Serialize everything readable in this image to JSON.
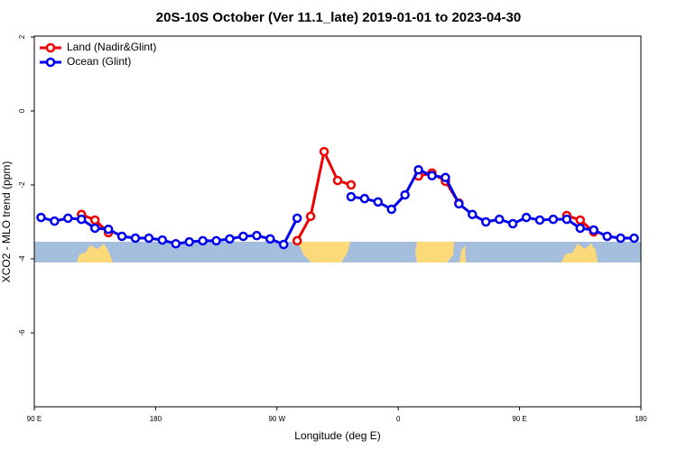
{
  "chart_data": {
    "type": "line",
    "title": "20S-10S October (Ver 11.1_late)   2019-01-01 to 2023-04-30",
    "x_label": "Longitude (deg E)",
    "y_label": "XCO2 - MLO trend (ppm)",
    "x": [
      95,
      105,
      115,
      125,
      135,
      145,
      155,
      165,
      175,
      185,
      195,
      205,
      215,
      225,
      235,
      245,
      255,
      265,
      275,
      285,
      295,
      305,
      315,
      325,
      335,
      345,
      355,
      365,
      375,
      385,
      395,
      405,
      415,
      425,
      435,
      445,
      455,
      465,
      475,
      485,
      495,
      505,
      515,
      525,
      535
    ],
    "series": [
      {
        "name": "Land (Nadir&Glint)",
        "color": "#ee0000",
        "values": [
          null,
          null,
          null,
          -2.8,
          -2.95,
          -3.29,
          null,
          null,
          null,
          null,
          null,
          null,
          null,
          null,
          null,
          null,
          null,
          null,
          null,
          -3.51,
          -2.85,
          -1.1,
          -1.88,
          -2.0,
          null,
          null,
          null,
          null,
          -1.76,
          -1.68,
          -1.9,
          -2.49,
          null,
          null,
          null,
          null,
          null,
          null,
          null,
          -2.83,
          -2.95,
          -3.27,
          null,
          null,
          null
        ]
      },
      {
        "name": "Ocean (Glint)",
        "color": "#0000ee",
        "values": [
          -2.88,
          -2.98,
          -2.9,
          -2.93,
          -3.17,
          -3.2,
          -3.39,
          -3.44,
          -3.44,
          -3.49,
          -3.59,
          -3.54,
          -3.51,
          -3.51,
          -3.46,
          -3.39,
          -3.37,
          -3.46,
          -3.61,
          -2.9,
          null,
          null,
          null,
          -2.32,
          -2.37,
          -2.46,
          -2.66,
          -2.27,
          -1.59,
          -1.75,
          -1.8,
          -2.51,
          -2.8,
          -3.0,
          -2.93,
          -3.05,
          -2.88,
          -2.95,
          -2.93,
          -2.93,
          -3.17,
          -3.22,
          -3.39,
          -3.44,
          -3.44
        ]
      }
    ],
    "xlim": [
      90,
      540
    ],
    "xticks": [
      {
        "value": 90,
        "label": "90 E"
      },
      180,
      {
        "value": 270,
        "label": "90 W"
      },
      {
        "value": 360,
        "label": "0"
      },
      {
        "value": 450,
        "label": "90 E"
      },
      {
        "value": 540,
        "label": "180"
      }
    ],
    "ylim": [
      -8,
      2
    ],
    "yticks": [
      2,
      0,
      -2,
      -4,
      -6
    ],
    "legend": "top-left"
  }
}
